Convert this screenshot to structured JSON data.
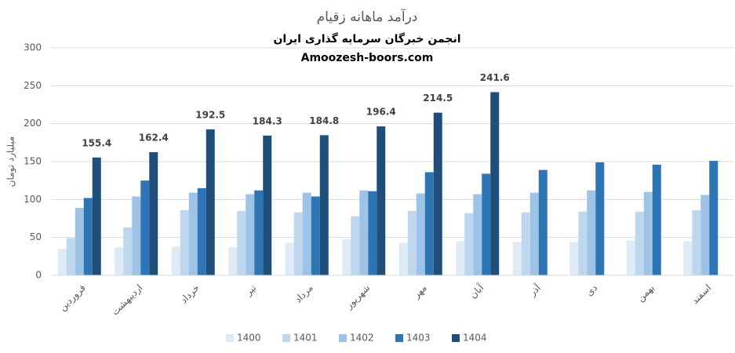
{
  "chart_data": {
    "type": "bar",
    "title": "درآمد ماهانه زقیام",
    "subtitle": [
      "انجمن خبرگان سرمایه گذاری ایران",
      "Amoozesh-boors.com"
    ],
    "y_label": "میلیارد تومان",
    "categories": [
      "فروردین",
      "اردیبهشت",
      "خرداد",
      "تیر",
      "مرداد",
      "شهریور",
      "مهر",
      "آبان",
      "آذر",
      "دی",
      "بهمن",
      "اسفند"
    ],
    "series": [
      {
        "name": "1400",
        "color": "#deebf7",
        "values": [
          35,
          37,
          38,
          37,
          43,
          48,
          43,
          45,
          44,
          44,
          46,
          45
        ]
      },
      {
        "name": "1401",
        "color": "#bdd7ee",
        "values": [
          49,
          63,
          86,
          85,
          83,
          78,
          85,
          82,
          83,
          84,
          84,
          86
        ]
      },
      {
        "name": "1402",
        "color": "#9dc3e6",
        "values": [
          89,
          104,
          109,
          107,
          109,
          112,
          108,
          107,
          109,
          112,
          110,
          106
        ]
      },
      {
        "name": "1403",
        "color": "#2e75b6",
        "values": [
          102,
          125,
          115,
          112,
          104,
          111,
          136,
          134,
          139,
          149,
          146,
          151
        ]
      },
      {
        "name": "1404",
        "color": "#1f4e79",
        "show_labels": true,
        "values": [
          155.4,
          162.4,
          192.5,
          184.3,
          184.8,
          196.4,
          214.5,
          241.6,
          null,
          null,
          null,
          null
        ]
      }
    ],
    "ylim": [
      0,
      300
    ],
    "yticks": [
      0,
      50,
      100,
      150,
      200,
      250,
      300
    ],
    "grid": true,
    "legend": "bottom"
  }
}
